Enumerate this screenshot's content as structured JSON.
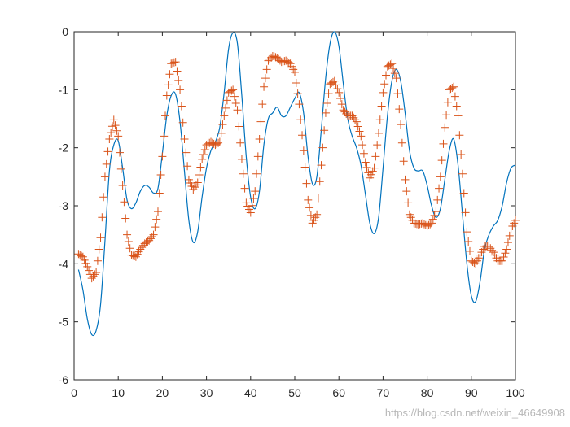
{
  "chart_data": {
    "type": "line",
    "title": "",
    "xlabel": "",
    "ylabel": "",
    "xlim": [
      0,
      100
    ],
    "ylim": [
      -6,
      0
    ],
    "grid": false,
    "legend": "none",
    "x_ticks": [
      0,
      10,
      20,
      30,
      40,
      50,
      60,
      70,
      80,
      90,
      100
    ],
    "y_ticks": [
      0,
      -1,
      -2,
      -3,
      -4,
      -5,
      -6
    ],
    "series": [
      {
        "style": "solid line",
        "color": "#0072BD",
        "points": [
          [
            1,
            -4.1
          ],
          [
            2,
            -4.45
          ],
          [
            3,
            -4.95
          ],
          [
            4,
            -5.22
          ],
          [
            5,
            -5.15
          ],
          [
            6,
            -4.7
          ],
          [
            7,
            -3.6
          ],
          [
            8,
            -2.4
          ],
          [
            9,
            -1.95
          ],
          [
            10,
            -1.88
          ],
          [
            11,
            -2.35
          ],
          [
            12,
            -2.9
          ],
          [
            13,
            -3.05
          ],
          [
            14,
            -2.95
          ],
          [
            15,
            -2.75
          ],
          [
            16,
            -2.65
          ],
          [
            17,
            -2.68
          ],
          [
            18,
            -2.78
          ],
          [
            19,
            -2.7
          ],
          [
            20,
            -2.1
          ],
          [
            21,
            -1.45
          ],
          [
            22,
            -1.1
          ],
          [
            23,
            -1.08
          ],
          [
            24,
            -1.55
          ],
          [
            25,
            -2.4
          ],
          [
            26,
            -3.25
          ],
          [
            27,
            -3.63
          ],
          [
            28,
            -3.45
          ],
          [
            29,
            -2.85
          ],
          [
            30,
            -2.35
          ],
          [
            31,
            -2.05
          ],
          [
            32,
            -1.9
          ],
          [
            33,
            -1.65
          ],
          [
            34,
            -1.05
          ],
          [
            35,
            -0.3
          ],
          [
            36,
            -0.02
          ],
          [
            37,
            -0.2
          ],
          [
            38,
            -1.1
          ],
          [
            39,
            -2.15
          ],
          [
            40,
            -2.85
          ],
          [
            41,
            -3.05
          ],
          [
            42,
            -2.75
          ],
          [
            43,
            -1.95
          ],
          [
            44,
            -1.5
          ],
          [
            45,
            -1.4
          ],
          [
            46,
            -1.3
          ],
          [
            47,
            -1.45
          ],
          [
            48,
            -1.45
          ],
          [
            49,
            -1.3
          ],
          [
            50,
            -1.15
          ],
          [
            51,
            -1.05
          ],
          [
            52,
            -1.4
          ],
          [
            53,
            -2.15
          ],
          [
            54,
            -2.62
          ],
          [
            55,
            -2.5
          ],
          [
            56,
            -1.7
          ],
          [
            57,
            -0.8
          ],
          [
            58,
            -0.2
          ],
          [
            59,
            0.0
          ],
          [
            60,
            -0.25
          ],
          [
            61,
            -0.9
          ],
          [
            62,
            -1.5
          ],
          [
            63,
            -1.8
          ],
          [
            64,
            -2.0
          ],
          [
            65,
            -2.3
          ],
          [
            66,
            -2.8
          ],
          [
            67,
            -3.3
          ],
          [
            68,
            -3.48
          ],
          [
            69,
            -3.2
          ],
          [
            70,
            -2.35
          ],
          [
            71,
            -1.45
          ],
          [
            72,
            -0.85
          ],
          [
            73,
            -0.65
          ],
          [
            74,
            -0.85
          ],
          [
            75,
            -1.4
          ],
          [
            76,
            -2.05
          ],
          [
            77,
            -2.35
          ],
          [
            78,
            -2.4
          ],
          [
            79,
            -2.4
          ],
          [
            80,
            -2.65
          ],
          [
            81,
            -3.0
          ],
          [
            82,
            -3.2
          ],
          [
            83,
            -3.05
          ],
          [
            84,
            -2.55
          ],
          [
            85,
            -2.05
          ],
          [
            86,
            -1.85
          ],
          [
            87,
            -2.3
          ],
          [
            88,
            -3.15
          ],
          [
            89,
            -4.0
          ],
          [
            90,
            -4.55
          ],
          [
            91,
            -4.65
          ],
          [
            92,
            -4.3
          ],
          [
            93,
            -3.75
          ],
          [
            94,
            -3.5
          ],
          [
            95,
            -3.35
          ],
          [
            96,
            -3.25
          ],
          [
            97,
            -3.0
          ],
          [
            98,
            -2.6
          ],
          [
            99,
            -2.35
          ],
          [
            100,
            -2.3
          ]
        ]
      },
      {
        "style": "plus markers",
        "color": "#D95319",
        "points": [
          [
            1,
            -3.83
          ],
          [
            2,
            -3.88
          ],
          [
            3,
            -4.05
          ],
          [
            4,
            -4.25
          ],
          [
            5,
            -4.15
          ],
          [
            6,
            -3.55
          ],
          [
            7,
            -2.5
          ],
          [
            8,
            -1.85
          ],
          [
            9,
            -1.52
          ],
          [
            10,
            -1.8
          ],
          [
            11,
            -2.65
          ],
          [
            12,
            -3.5
          ],
          [
            13,
            -3.85
          ],
          [
            14,
            -3.88
          ],
          [
            15,
            -3.75
          ],
          [
            16,
            -3.65
          ],
          [
            17,
            -3.6
          ],
          [
            18,
            -3.5
          ],
          [
            19,
            -3.1
          ],
          [
            20,
            -2.15
          ],
          [
            21,
            -1.1
          ],
          [
            22,
            -0.55
          ],
          [
            23,
            -0.52
          ],
          [
            24,
            -1.0
          ],
          [
            25,
            -1.85
          ],
          [
            26,
            -2.55
          ],
          [
            27,
            -2.72
          ],
          [
            28,
            -2.6
          ],
          [
            29,
            -2.2
          ],
          [
            30,
            -1.95
          ],
          [
            31,
            -1.9
          ],
          [
            32,
            -1.95
          ],
          [
            33,
            -1.9
          ],
          [
            34,
            -1.45
          ],
          [
            35,
            -1.05
          ],
          [
            36,
            -1.0
          ],
          [
            37,
            -1.35
          ],
          [
            38,
            -2.2
          ],
          [
            39,
            -2.95
          ],
          [
            40,
            -3.12
          ],
          [
            41,
            -2.75
          ],
          [
            42,
            -1.85
          ],
          [
            43,
            -0.95
          ],
          [
            44,
            -0.5
          ],
          [
            45,
            -0.42
          ],
          [
            46,
            -0.45
          ],
          [
            47,
            -0.52
          ],
          [
            48,
            -0.5
          ],
          [
            49,
            -0.55
          ],
          [
            50,
            -0.7
          ],
          [
            51,
            -1.25
          ],
          [
            52,
            -2.05
          ],
          [
            53,
            -2.9
          ],
          [
            54,
            -3.3
          ],
          [
            55,
            -3.15
          ],
          [
            56,
            -2.3
          ],
          [
            57,
            -1.4
          ],
          [
            58,
            -0.9
          ],
          [
            59,
            -0.85
          ],
          [
            60,
            -1.05
          ],
          [
            61,
            -1.35
          ],
          [
            62,
            -1.45
          ],
          [
            63,
            -1.45
          ],
          [
            64,
            -1.55
          ],
          [
            65,
            -1.8
          ],
          [
            66,
            -2.25
          ],
          [
            67,
            -2.52
          ],
          [
            68,
            -2.35
          ],
          [
            69,
            -1.75
          ],
          [
            70,
            -1.05
          ],
          [
            71,
            -0.6
          ],
          [
            72,
            -0.55
          ],
          [
            73,
            -0.8
          ],
          [
            74,
            -1.6
          ],
          [
            75,
            -2.55
          ],
          [
            76,
            -3.15
          ],
          [
            77,
            -3.3
          ],
          [
            78,
            -3.32
          ],
          [
            79,
            -3.3
          ],
          [
            80,
            -3.35
          ],
          [
            81,
            -3.3
          ],
          [
            82,
            -3.1
          ],
          [
            83,
            -2.5
          ],
          [
            84,
            -1.65
          ],
          [
            85,
            -1.0
          ],
          [
            86,
            -0.95
          ],
          [
            87,
            -1.45
          ],
          [
            88,
            -2.45
          ],
          [
            89,
            -3.45
          ],
          [
            90,
            -3.95
          ],
          [
            91,
            -4.0
          ],
          [
            92,
            -3.85
          ],
          [
            93,
            -3.7
          ],
          [
            94,
            -3.7
          ],
          [
            95,
            -3.8
          ],
          [
            96,
            -3.95
          ],
          [
            97,
            -3.95
          ],
          [
            98,
            -3.75
          ],
          [
            99,
            -3.4
          ],
          [
            100,
            -3.25
          ]
        ]
      }
    ]
  },
  "watermark": "https://blog.csdn.net/weixin_46649908"
}
